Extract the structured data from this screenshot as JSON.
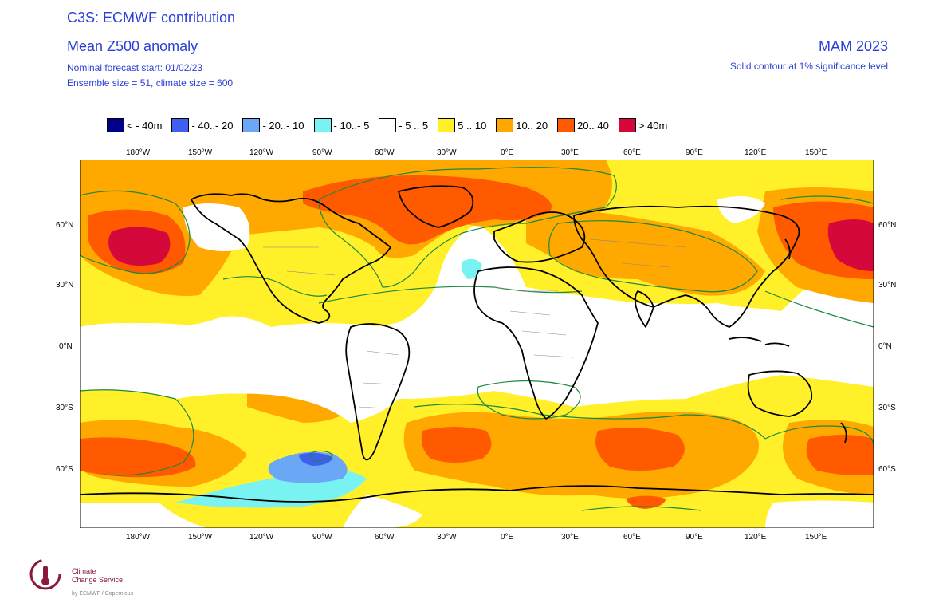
{
  "header": {
    "title": "C3S: ECMWF contribution",
    "subtitle": "Mean Z500 anomaly",
    "forecast_start": "Nominal forecast start: 01/02/23",
    "ensemble": "Ensemble size = 51, climate size = 600",
    "period": "MAM 2023",
    "significance": "Solid contour at 1% significance level"
  },
  "legend": [
    {
      "label": "< - 40m",
      "color": "#00008b"
    },
    {
      "label": "- 40..- 20",
      "color": "#3f5ff0"
    },
    {
      "label": "- 20..- 10",
      "color": "#6aa8f5"
    },
    {
      "label": "- 10..- 5",
      "color": "#79f2f2"
    },
    {
      "label": "- 5 .. 5",
      "color": "#ffffff"
    },
    {
      "label": "5 .. 10",
      "color": "#fff02a"
    },
    {
      "label": "10.. 20",
      "color": "#ffa800"
    },
    {
      "label": "20.. 40",
      "color": "#ff5a00"
    },
    {
      "label": "> 40m",
      "color": "#d4083a"
    }
  ],
  "axes": {
    "lon_labels": [
      "180°W",
      "150°W",
      "120°W",
      "90°W",
      "60°W",
      "30°W",
      "0°E",
      "30°E",
      "60°E",
      "90°E",
      "120°E",
      "150°E"
    ],
    "lat_labels": [
      "60°N",
      "30°N",
      "0°N",
      "30°S",
      "60°S"
    ]
  },
  "logo": {
    "line1": "Climate",
    "line2": "Change Service",
    "footer": "by ECMWF / Copernicus"
  },
  "colors": {
    "contour": "#1a8a3a",
    "coast": "#000000",
    "border": "#888888"
  }
}
